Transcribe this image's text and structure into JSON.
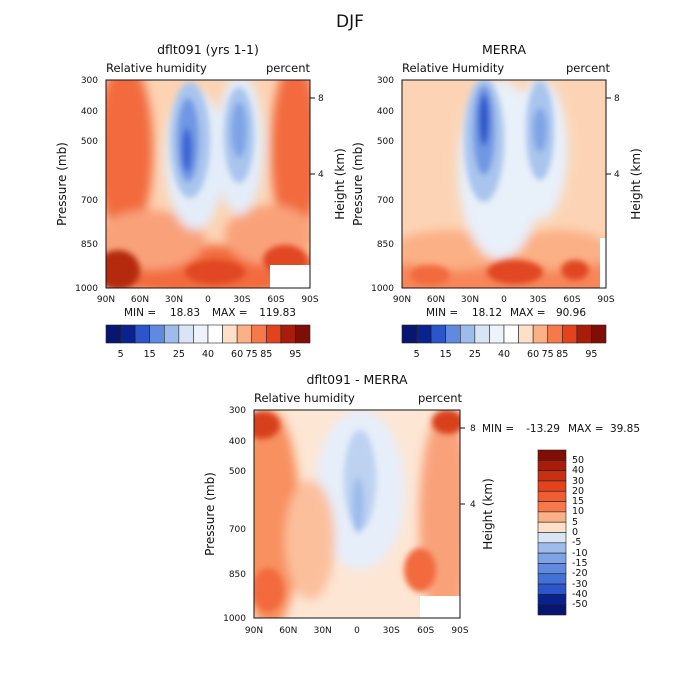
{
  "title": "DJF",
  "palette_reds": [
    "#fde0c5",
    "#fcc8a5",
    "#fbb085",
    "#f99566",
    "#f6794b",
    "#f15d32",
    "#e3421d",
    "#c92f12",
    "#a81d0a",
    "#7f0f06"
  ],
  "palette_blues": [
    "#eef3fb",
    "#d9e5f6",
    "#bdd2f1",
    "#9dbcec",
    "#7ea4e6",
    "#5f8ae0",
    "#4271d8",
    "#2b55c9",
    "#1939b0",
    "#0a2290",
    "#061672"
  ],
  "chart_data": [
    {
      "id": "model",
      "type": "heatmap",
      "title": "dflt091 (yrs 1-1)",
      "left_label": "Relative humidity",
      "right_label": "percent",
      "xlabel": "",
      "ylabel": "Pressure (mb)",
      "y2label": "Height (km)",
      "x_ticks": [
        "90N",
        "60N",
        "30N",
        "0",
        "30S",
        "60S",
        "90S"
      ],
      "y_ticks": [
        "300",
        "400",
        "500",
        "700",
        "850",
        "1000"
      ],
      "y_tick_values": [
        300,
        400,
        500,
        700,
        850,
        1000
      ],
      "y2_ticks": [
        "8",
        "4"
      ],
      "y2_tick_values": [
        8,
        4
      ],
      "stats": {
        "min_label": "MIN =",
        "min": "18.83",
        "max_label": "MAX =",
        "max": "119.83"
      },
      "colorbar": {
        "orientation": "horizontal",
        "labels": [
          "5",
          "15",
          "25",
          "40",
          "60",
          "75",
          "85",
          "95"
        ]
      }
    },
    {
      "id": "merra",
      "type": "heatmap",
      "title": "MERRA",
      "left_label": "Relative Humidity",
      "right_label": "percent",
      "xlabel": "",
      "ylabel": "Pressure (mb)",
      "y2label": "Height (km)",
      "x_ticks": [
        "90N",
        "60N",
        "30N",
        "0",
        "30S",
        "60S",
        "90S"
      ],
      "y_ticks": [
        "300",
        "400",
        "500",
        "700",
        "850",
        "1000"
      ],
      "y_tick_values": [
        300,
        400,
        500,
        700,
        850,
        1000
      ],
      "y2_ticks": [
        "8",
        "4"
      ],
      "y2_tick_values": [
        8,
        4
      ],
      "stats": {
        "min_label": "MIN =",
        "min": "18.12",
        "max_label": "MAX =",
        "max": "90.96"
      },
      "colorbar": {
        "orientation": "horizontal",
        "labels": [
          "5",
          "15",
          "25",
          "40",
          "60",
          "75",
          "85",
          "95"
        ]
      }
    },
    {
      "id": "diff",
      "type": "heatmap",
      "title": "dflt091 - MERRA",
      "left_label": "Relative humidity",
      "right_label": "percent",
      "xlabel": "",
      "ylabel": "Pressure (mb)",
      "y2label": "Height (km)",
      "x_ticks": [
        "90N",
        "60N",
        "30N",
        "0",
        "30S",
        "60S",
        "90S"
      ],
      "y_ticks": [
        "300",
        "400",
        "500",
        "700",
        "850",
        "1000"
      ],
      "y_tick_values": [
        300,
        400,
        500,
        700,
        850,
        1000
      ],
      "y2_ticks": [
        "8",
        "4"
      ],
      "y2_tick_values": [
        8,
        4
      ],
      "stats": {
        "min_label": "MIN =",
        "min": "-13.29",
        "max_label": "MAX =",
        "max": "39.85"
      },
      "colorbar": {
        "orientation": "vertical",
        "labels": [
          "50",
          "40",
          "30",
          "20",
          "15",
          "10",
          "5",
          "0",
          "-5",
          "-10",
          "-15",
          "-20",
          "-30",
          "-40",
          "-50"
        ]
      }
    }
  ]
}
